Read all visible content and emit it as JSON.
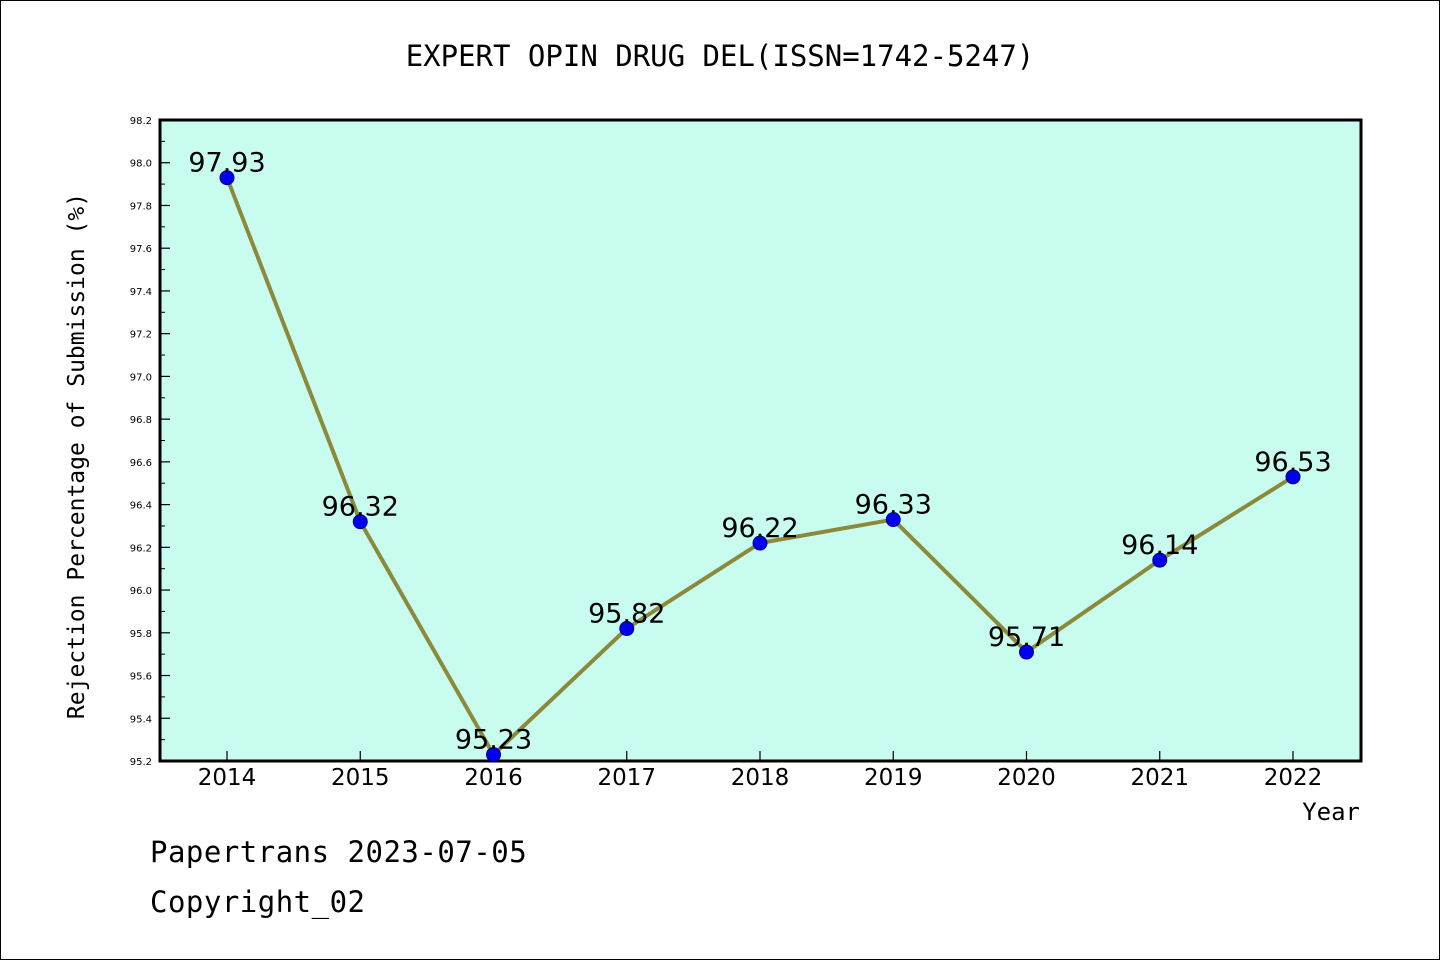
{
  "chart_data": {
    "type": "line",
    "title": "EXPERT OPIN DRUG DEL(ISSN=1742-5247)",
    "xlabel": "Year",
    "ylabel": "Rejection Percentage of Submission (%)",
    "x": [
      "2014",
      "2015",
      "2016",
      "2017",
      "2018",
      "2019",
      "2020",
      "2021",
      "2022"
    ],
    "series": [
      {
        "values": [
          97.93,
          96.32,
          95.23,
          95.82,
          96.22,
          96.33,
          95.71,
          96.14,
          96.53
        ],
        "labels": [
          "97.93",
          "96.32",
          "95.23",
          "95.82",
          "96.22",
          "96.33",
          "95.71",
          "96.14",
          "96.53"
        ]
      }
    ],
    "ylim": [
      95.2,
      98.2
    ],
    "yticks": [
      "95.2",
      "95.4",
      "95.6",
      "95.8",
      "96.0",
      "96.2",
      "96.4",
      "96.6",
      "96.8",
      "97.0",
      "97.2",
      "97.4",
      "97.6",
      "97.8",
      "98.0",
      "98.2"
    ],
    "grid": false,
    "colors": {
      "plot_background": "#c8fcee",
      "line": "#8b8a3a",
      "marker": "#0000ee",
      "axis": "#000000"
    }
  },
  "footer": {
    "line1": "Papertrans 2023-07-05",
    "line2": "Copyright_02"
  }
}
